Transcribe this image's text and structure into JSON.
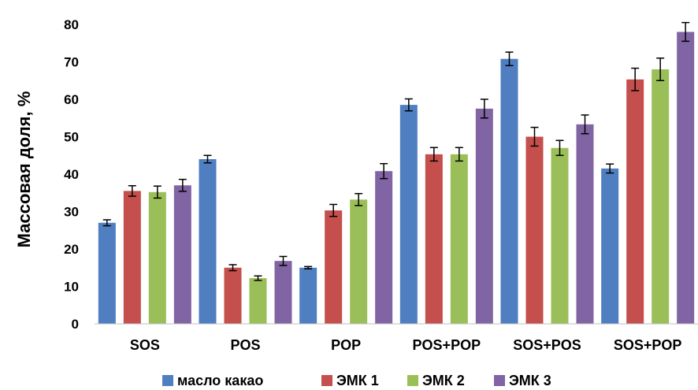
{
  "chart_data": {
    "type": "bar",
    "title": "",
    "xlabel": "",
    "ylabel": "Массовая доля, %",
    "ylim": [
      0,
      80
    ],
    "y_ticks": [
      "0",
      "10",
      "20",
      "30",
      "40",
      "50",
      "60",
      "70",
      "80"
    ],
    "grid": false,
    "legend_position": "bottom",
    "categories": [
      "SOS",
      "POS",
      "POP",
      "POS+POP",
      "SOS+POS",
      "SOS+POP"
    ],
    "series": [
      {
        "name": "масло какао",
        "color": "#4f7ec1",
        "values": [
          27.0,
          44.0,
          15.0,
          58.5,
          70.8,
          41.5
        ],
        "errors": [
          0.8,
          1.0,
          0.3,
          1.6,
          1.8,
          1.2
        ]
      },
      {
        "name": "ЭМК 1",
        "color": "#c44f4c",
        "values": [
          35.5,
          15.0,
          30.3,
          45.3,
          50.0,
          65.3
        ],
        "errors": [
          1.4,
          0.8,
          1.6,
          1.8,
          2.5,
          3.0
        ]
      },
      {
        "name": "ЭМК 2",
        "color": "#9bbf58",
        "values": [
          35.2,
          12.2,
          33.2,
          45.3,
          47.0,
          68.0
        ],
        "errors": [
          1.6,
          0.6,
          1.6,
          1.8,
          2.0,
          3.0
        ]
      },
      {
        "name": "ЭМК 3",
        "color": "#8064a3",
        "values": [
          37.0,
          16.8,
          40.8,
          57.5,
          53.3,
          78.0
        ],
        "errors": [
          1.6,
          1.2,
          2.0,
          2.5,
          2.5,
          2.5
        ]
      }
    ]
  }
}
